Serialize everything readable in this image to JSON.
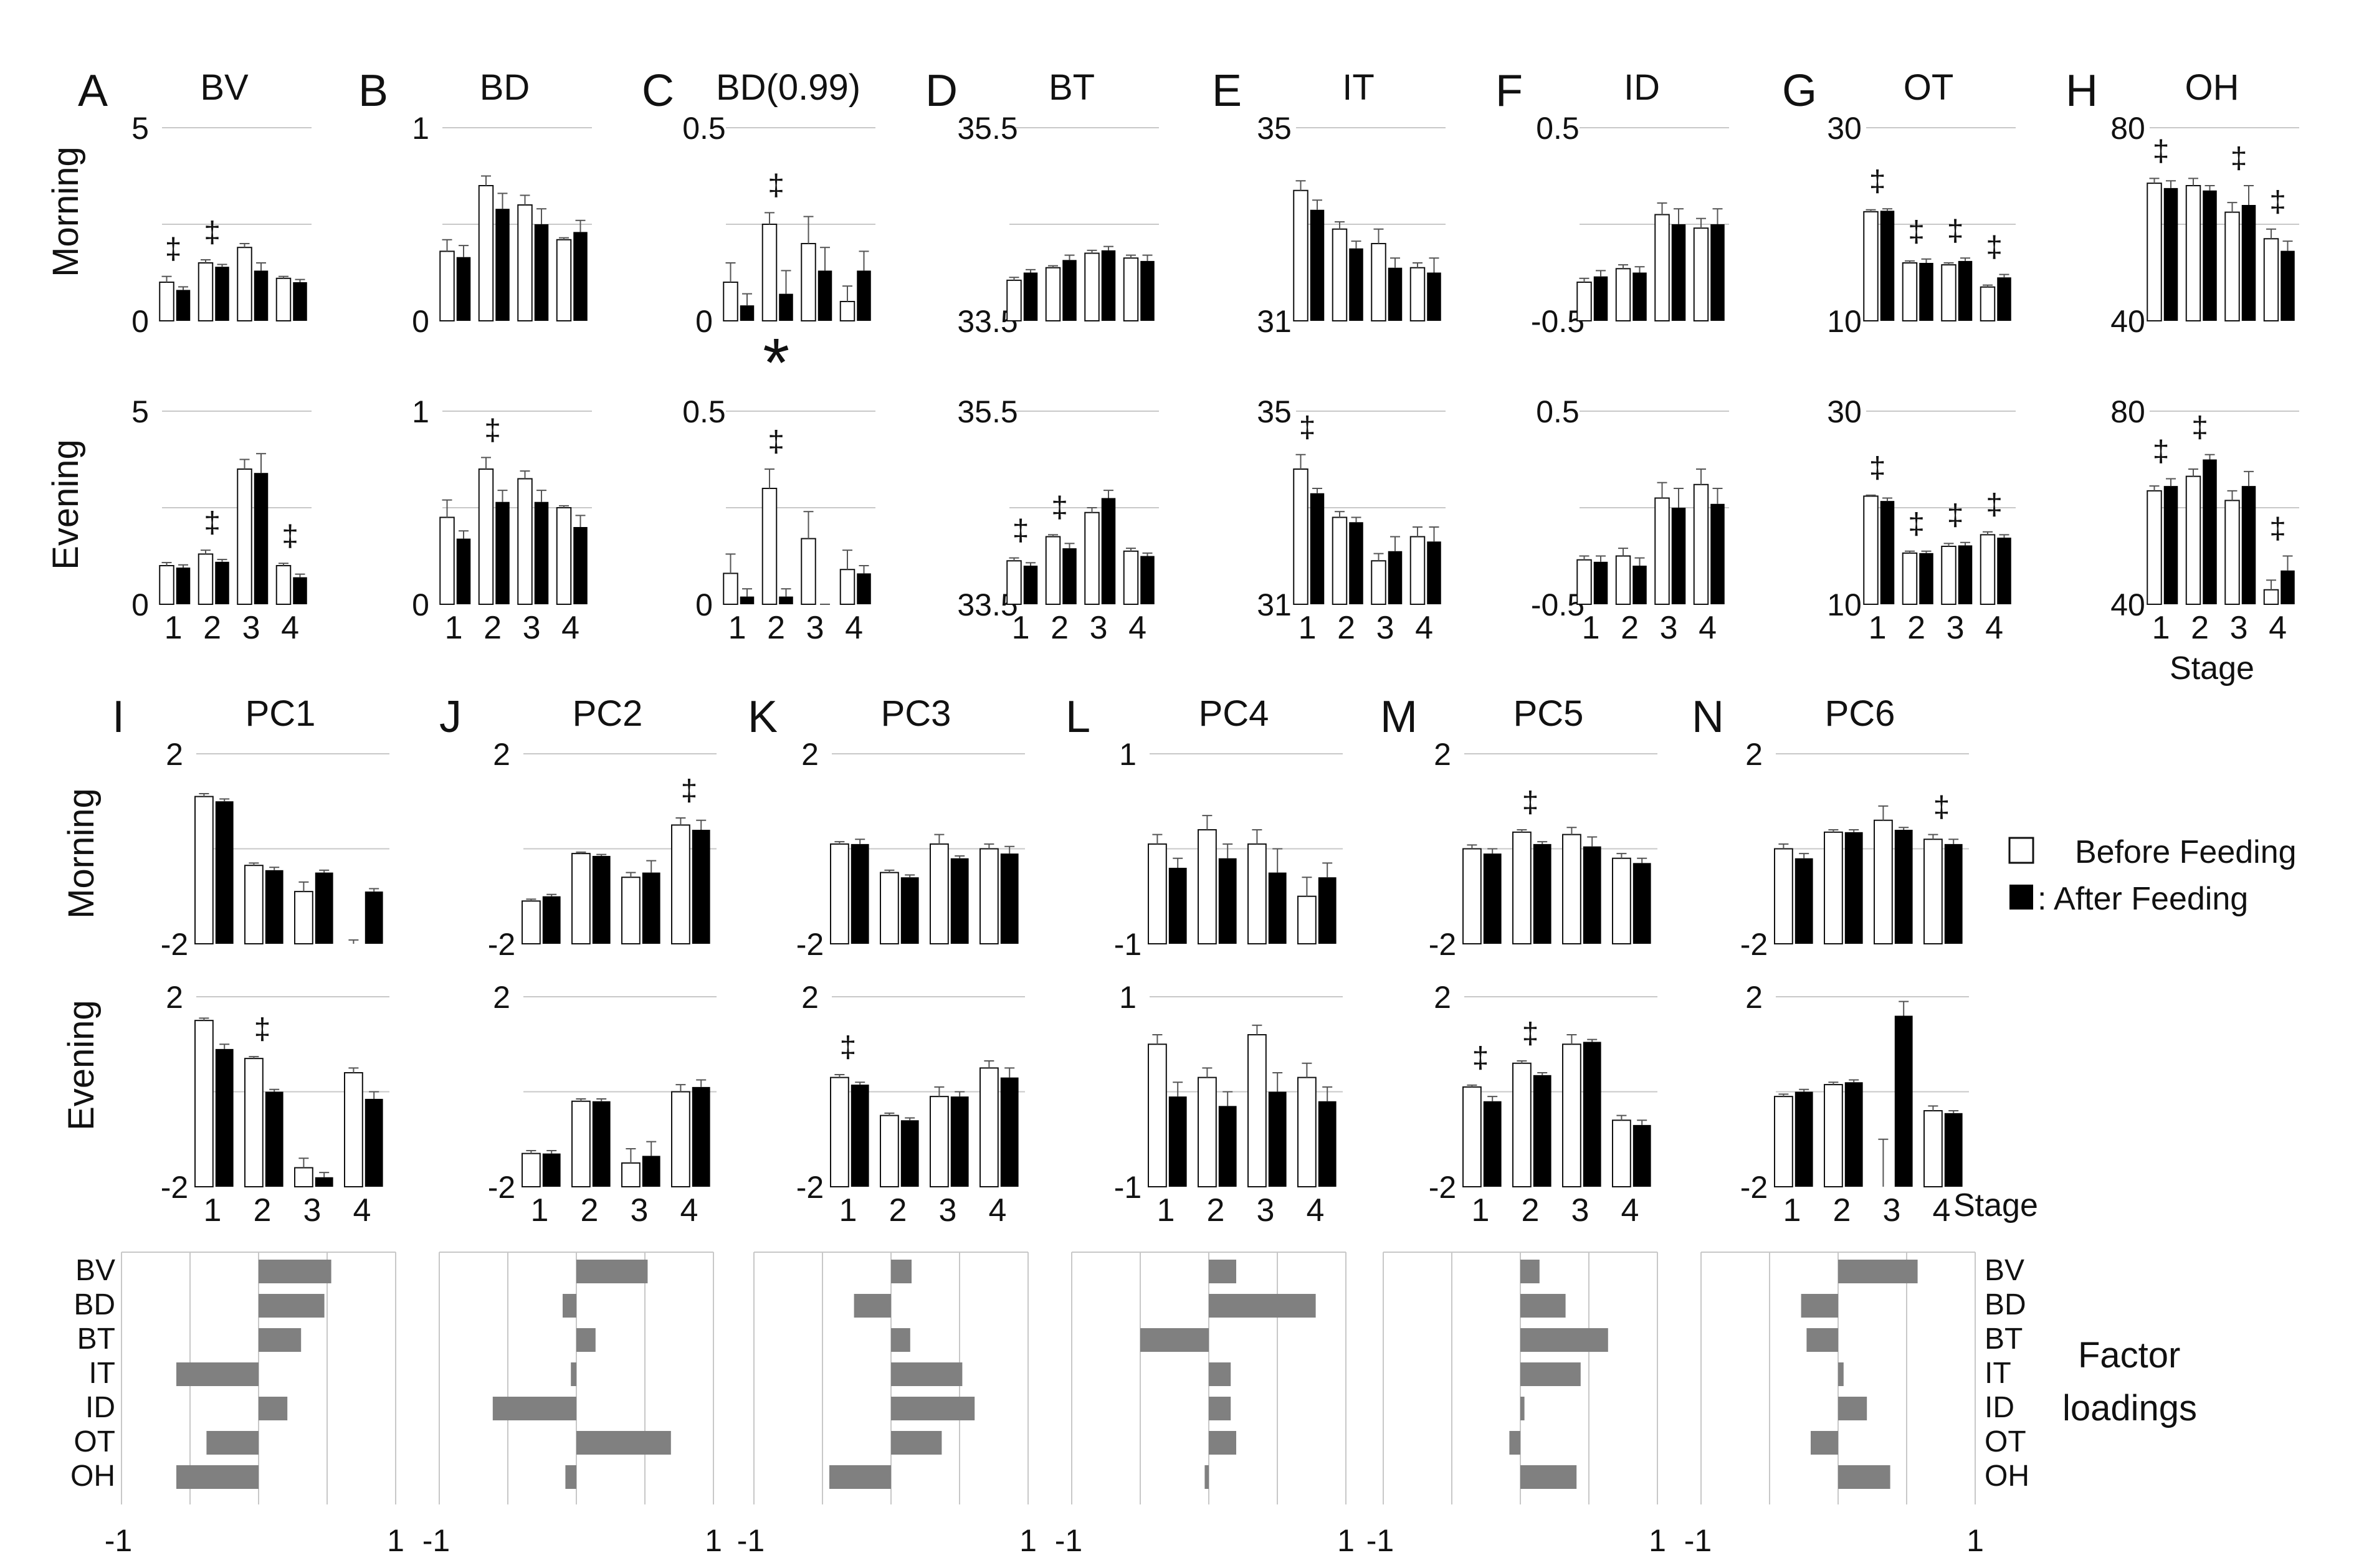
{
  "figure": {
    "side_labels": {
      "morning": "Morning",
      "evening": "Evening"
    },
    "stage_word": "Stage",
    "legend": {
      "before": "Before Feeding",
      "after": ": After  Feeding"
    },
    "factor_label_1": "Factor",
    "factor_label_2": "loadings",
    "sig_mark": "‡",
    "star_mark": "*",
    "colors": {
      "after": "#000000",
      "before": "#ffffff",
      "loading_bar": "#808080",
      "grid": "#c8c8c8",
      "error": "#555555"
    }
  },
  "chart_data": [
    {
      "type": "bar",
      "panel": "A",
      "title": "BV",
      "categories": [
        "1",
        "2",
        "3",
        "4"
      ],
      "morning": {
        "ylim": [
          0,
          5
        ],
        "ytick_labels": [
          "5",
          "0"
        ],
        "before": [
          1.0,
          1.5,
          1.9,
          1.1
        ],
        "after": [
          0.8,
          1.4,
          1.3,
          1.0
        ],
        "before_err": [
          0.15,
          0.08,
          0.1,
          0.05
        ],
        "after_err": [
          0.08,
          0.06,
          0.2,
          0.07
        ],
        "sig": [
          1,
          2
        ]
      },
      "evening": {
        "ylim": [
          0,
          5
        ],
        "ytick_labels": [
          "5",
          "0"
        ],
        "before": [
          1.0,
          1.3,
          3.5,
          1.0
        ],
        "after": [
          0.95,
          1.1,
          3.4,
          0.7
        ],
        "before_err": [
          0.08,
          0.1,
          0.25,
          0.06
        ],
        "after_err": [
          0.07,
          0.06,
          0.5,
          0.08
        ],
        "sig": [
          2,
          4
        ]
      }
    },
    {
      "type": "bar",
      "panel": "B",
      "title": "BD",
      "categories": [
        "1",
        "2",
        "3",
        "4"
      ],
      "morning": {
        "ylim": [
          0,
          1
        ],
        "ytick_labels": [
          "1",
          "0"
        ],
        "before": [
          0.36,
          0.7,
          0.6,
          0.42
        ],
        "after": [
          0.33,
          0.58,
          0.5,
          0.46
        ],
        "before_err": [
          0.06,
          0.05,
          0.05,
          0.01
        ],
        "after_err": [
          0.06,
          0.08,
          0.08,
          0.06
        ],
        "sig": []
      },
      "evening": {
        "ylim": [
          0,
          1
        ],
        "ytick_labels": [
          "1",
          "0"
        ],
        "before": [
          0.45,
          0.7,
          0.65,
          0.5
        ],
        "after": [
          0.34,
          0.53,
          0.53,
          0.4
        ],
        "before_err": [
          0.09,
          0.06,
          0.04,
          0.01
        ],
        "after_err": [
          0.04,
          0.06,
          0.06,
          0.06
        ],
        "sig": [
          2
        ]
      }
    },
    {
      "type": "bar",
      "panel": "C",
      "title": "BD(0.99)",
      "categories": [
        "1",
        "2",
        "3",
        "4"
      ],
      "morning": {
        "ylim": [
          0,
          0.5
        ],
        "ytick_labels": [
          "0.5",
          "0"
        ],
        "before": [
          0.1,
          0.25,
          0.2,
          0.05
        ],
        "after": [
          0.04,
          0.07,
          0.13,
          0.13
        ],
        "before_err": [
          0.05,
          0.03,
          0.07,
          0.04
        ],
        "after_err": [
          0.03,
          0.06,
          0.06,
          0.05
        ],
        "sig": [
          2
        ]
      },
      "evening": {
        "ylim": [
          0,
          0.5
        ],
        "ytick_labels": [
          "0.5",
          "0"
        ],
        "before": [
          0.08,
          0.3,
          0.17,
          0.09
        ],
        "after": [
          0.02,
          0.02,
          0.0,
          0.08
        ],
        "before_err": [
          0.05,
          0.05,
          0.07,
          0.05
        ],
        "after_err": [
          0.02,
          0.02,
          0.0,
          0.02
        ],
        "sig": [
          2
        ],
        "star": [
          2
        ]
      }
    },
    {
      "type": "bar",
      "panel": "D",
      "title": "BT",
      "categories": [
        "1",
        "2",
        "3",
        "4"
      ],
      "morning": {
        "ylim": [
          33.5,
          35.5
        ],
        "ytick_labels": [
          "35.5",
          "33.5"
        ],
        "before": [
          33.92,
          34.05,
          34.2,
          34.15
        ],
        "after": [
          34.0,
          34.13,
          34.23,
          34.12
        ],
        "before_err": [
          0.03,
          0.02,
          0.03,
          0.03
        ],
        "after_err": [
          0.03,
          0.05,
          0.04,
          0.06
        ],
        "sig": []
      },
      "evening": {
        "ylim": [
          33.5,
          35.5
        ],
        "ytick_labels": [
          "35.5",
          "33.5"
        ],
        "before": [
          33.95,
          34.2,
          34.45,
          34.05
        ],
        "after": [
          33.9,
          34.08,
          34.6,
          34.0
        ],
        "before_err": [
          0.03,
          0.02,
          0.05,
          0.03
        ],
        "after_err": [
          0.03,
          0.05,
          0.08,
          0.03
        ],
        "sig": [
          1,
          2
        ]
      }
    },
    {
      "type": "bar",
      "panel": "E",
      "title": "IT",
      "categories": [
        "1",
        "2",
        "3",
        "4"
      ],
      "morning": {
        "ylim": [
          31,
          35
        ],
        "ytick_labels": [
          "35",
          "31"
        ],
        "before": [
          33.7,
          32.9,
          32.6,
          32.1
        ],
        "after": [
          33.3,
          32.5,
          32.1,
          32.0
        ],
        "before_err": [
          0.2,
          0.15,
          0.3,
          0.1
        ],
        "after_err": [
          0.2,
          0.15,
          0.2,
          0.3
        ],
        "sig": []
      },
      "evening": {
        "ylim": [
          31,
          35
        ],
        "ytick_labels": [
          "35",
          "31"
        ],
        "before": [
          33.8,
          32.8,
          31.9,
          32.4
        ],
        "after": [
          33.3,
          32.7,
          32.1,
          32.3
        ],
        "before_err": [
          0.3,
          0.12,
          0.15,
          0.2
        ],
        "after_err": [
          0.1,
          0.1,
          0.3,
          0.3
        ],
        "sig": [
          1
        ]
      }
    },
    {
      "type": "bar",
      "panel": "F",
      "title": "ID",
      "categories": [
        "1",
        "2",
        "3",
        "4"
      ],
      "morning": {
        "ylim": [
          -0.5,
          0.5
        ],
        "ytick_labels": [
          "0.5",
          "-0.5"
        ],
        "before": [
          -0.3,
          -0.23,
          0.05,
          -0.02
        ],
        "after": [
          -0.27,
          -0.25,
          0.0,
          0.0
        ],
        "before_err": [
          0.02,
          0.02,
          0.06,
          0.05
        ],
        "after_err": [
          0.03,
          0.03,
          0.08,
          0.08
        ],
        "sig": []
      },
      "evening": {
        "ylim": [
          -0.5,
          0.5
        ],
        "ytick_labels": [
          "0.5",
          "-0.5"
        ],
        "before": [
          -0.27,
          -0.25,
          0.05,
          0.12
        ],
        "after": [
          -0.28,
          -0.3,
          0.0,
          0.02
        ],
        "before_err": [
          0.02,
          0.04,
          0.08,
          0.08
        ],
        "after_err": [
          0.03,
          0.04,
          0.1,
          0.08
        ],
        "sig": []
      }
    },
    {
      "type": "bar",
      "panel": "G",
      "title": "OT",
      "categories": [
        "1",
        "2",
        "3",
        "4"
      ],
      "morning": {
        "ylim": [
          10,
          30
        ],
        "ytick_labels": [
          "30",
          "10"
        ],
        "before": [
          21.3,
          16.0,
          15.8,
          13.5
        ],
        "after": [
          21.4,
          16.0,
          16.2,
          14.5
        ],
        "before_err": [
          0.2,
          0.2,
          0.2,
          0.2
        ],
        "after_err": [
          0.2,
          0.4,
          0.3,
          0.3
        ],
        "sig": [
          1,
          2,
          3,
          4
        ]
      },
      "evening": {
        "ylim": [
          10,
          30
        ],
        "ytick_labels": [
          "30",
          "10"
        ],
        "before": [
          21.2,
          15.3,
          16.0,
          17.2
        ],
        "after": [
          20.7,
          15.3,
          16.1,
          16.9
        ],
        "before_err": [
          0.1,
          0.2,
          0.3,
          0.3
        ],
        "after_err": [
          0.3,
          0.2,
          0.3,
          0.3
        ],
        "sig": [
          1,
          2,
          3,
          4
        ]
      }
    },
    {
      "type": "bar",
      "panel": "H",
      "title": "OH",
      "categories": [
        "1",
        "2",
        "3",
        "4"
      ],
      "morning": {
        "ylim": [
          40,
          80
        ],
        "ytick_labels": [
          "80",
          "40"
        ],
        "before": [
          68.5,
          68,
          62.5,
          57
        ],
        "after": [
          67.5,
          67,
          64,
          54.5
        ],
        "before_err": [
          1,
          1.5,
          2,
          2
        ],
        "after_err": [
          1.5,
          1,
          4,
          2
        ],
        "sig": [
          1,
          3,
          4
        ]
      },
      "evening": {
        "ylim": [
          40,
          80
        ],
        "ytick_labels": [
          "80",
          "40"
        ],
        "before": [
          63.5,
          66.5,
          61.5,
          43
        ],
        "after": [
          64.5,
          70,
          64.5,
          47
        ],
        "before_err": [
          1,
          1.5,
          2,
          2
        ],
        "after_err": [
          1.5,
          1,
          3,
          3
        ],
        "sig": [
          1,
          2,
          4
        ],
        "xlabel": "Stage"
      }
    },
    {
      "type": "bar",
      "panel": "I",
      "title": "PC1",
      "categories": [
        "1",
        "2",
        "3",
        "4"
      ],
      "morning": {
        "ylim": [
          -2,
          2
        ],
        "ytick_labels": [
          "2",
          "-2"
        ],
        "before": [
          1.1,
          -0.35,
          -0.9,
          -2.0
        ],
        "after": [
          1.0,
          -0.45,
          -0.5,
          -0.9
        ],
        "before_err": [
          0.06,
          0.05,
          0.2,
          0.08
        ],
        "after_err": [
          0.05,
          0.06,
          0.05,
          0.06
        ],
        "sig": []
      },
      "evening": {
        "ylim": [
          -2,
          2
        ],
        "ytick_labels": [
          "2",
          "-2"
        ],
        "before": [
          1.5,
          0.7,
          -1.6,
          0.4
        ],
        "after": [
          0.9,
          0.0,
          -1.8,
          -0.15
        ],
        "before_err": [
          0.05,
          0.04,
          0.2,
          0.1
        ],
        "after_err": [
          0.1,
          0.05,
          0.1,
          0.15
        ],
        "sig": [
          2
        ]
      }
    },
    {
      "type": "bar",
      "panel": "J",
      "title": "PC2",
      "categories": [
        "1",
        "2",
        "3",
        "4"
      ],
      "morning": {
        "ylim": [
          -2,
          2
        ],
        "ytick_labels": [
          "2",
          "-2"
        ],
        "before": [
          -1.1,
          -0.1,
          -0.6,
          0.5
        ],
        "after": [
          -1.0,
          -0.15,
          -0.5,
          0.4
        ],
        "before_err": [
          0.04,
          0.03,
          0.1,
          0.15
        ],
        "after_err": [
          0.04,
          0.03,
          0.25,
          0.2
        ],
        "sig": [
          4
        ]
      },
      "evening": {
        "ylim": [
          -2,
          2
        ],
        "ytick_labels": [
          "2",
          "-2"
        ],
        "before": [
          -1.3,
          -0.2,
          -1.5,
          0.0
        ],
        "after": [
          -1.3,
          -0.2,
          -1.35,
          0.1
        ],
        "before_err": [
          0.06,
          0.05,
          0.3,
          0.15
        ],
        "after_err": [
          0.06,
          0.05,
          0.3,
          0.15
        ],
        "sig": []
      }
    },
    {
      "type": "bar",
      "panel": "K",
      "title": "PC3",
      "categories": [
        "1",
        "2",
        "3",
        "4"
      ],
      "morning": {
        "ylim": [
          -2,
          2
        ],
        "ytick_labels": [
          "2",
          "-2"
        ],
        "before": [
          0.1,
          -0.5,
          0.1,
          0.0
        ],
        "after": [
          0.1,
          -0.6,
          -0.2,
          -0.1
        ],
        "before_err": [
          0.05,
          0.05,
          0.2,
          0.1
        ],
        "after_err": [
          0.1,
          0.05,
          0.05,
          0.15
        ],
        "sig": []
      },
      "evening": {
        "ylim": [
          -2,
          2
        ],
        "ytick_labels": [
          "2",
          "-2"
        ],
        "before": [
          0.3,
          -0.5,
          -0.1,
          0.5
        ],
        "after": [
          0.15,
          -0.6,
          -0.1,
          0.3
        ],
        "before_err": [
          0.06,
          0.05,
          0.2,
          0.15
        ],
        "after_err": [
          0.05,
          0.05,
          0.1,
          0.2
        ],
        "sig": [
          1
        ]
      }
    },
    {
      "type": "bar",
      "panel": "L",
      "title": "PC4",
      "categories": [
        "1",
        "2",
        "3",
        "4"
      ],
      "morning": {
        "ylim": [
          -1,
          1
        ],
        "ytick_labels": [
          "1",
          "-1"
        ],
        "before": [
          0.05,
          0.2,
          0.05,
          -0.5
        ],
        "after": [
          -0.2,
          -0.1,
          -0.25,
          -0.3
        ],
        "before_err": [
          0.1,
          0.15,
          0.15,
          0.2
        ],
        "after_err": [
          0.1,
          0.15,
          0.25,
          0.15
        ],
        "sig": []
      },
      "evening": {
        "ylim": [
          -1,
          1
        ],
        "ytick_labels": [
          "1",
          "-1"
        ],
        "before": [
          0.5,
          0.15,
          0.6,
          0.15
        ],
        "after": [
          -0.05,
          -0.15,
          0.0,
          -0.1
        ],
        "before_err": [
          0.1,
          0.1,
          0.1,
          0.15
        ],
        "after_err": [
          0.15,
          0.15,
          0.2,
          0.15
        ],
        "sig": []
      }
    },
    {
      "type": "bar",
      "panel": "M",
      "title": "PC5",
      "categories": [
        "1",
        "2",
        "3",
        "4"
      ],
      "morning": {
        "ylim": [
          -2,
          2
        ],
        "ytick_labels": [
          "2",
          "-2"
        ],
        "before": [
          0.0,
          0.35,
          0.3,
          -0.2
        ],
        "after": [
          -0.1,
          0.1,
          0.05,
          -0.3
        ],
        "before_err": [
          0.08,
          0.05,
          0.15,
          0.1
        ],
        "after_err": [
          0.1,
          0.05,
          0.2,
          0.1
        ],
        "sig": [
          2
        ]
      },
      "evening": {
        "ylim": [
          -2,
          2
        ],
        "ytick_labels": [
          "2",
          "-2"
        ],
        "before": [
          0.1,
          0.6,
          1.0,
          -0.6
        ],
        "after": [
          -0.2,
          0.35,
          1.05,
          -0.7
        ],
        "before_err": [
          0.04,
          0.05,
          0.2,
          0.1
        ],
        "after_err": [
          0.1,
          0.05,
          0.05,
          0.1
        ],
        "sig": [
          1,
          2
        ]
      }
    },
    {
      "type": "bar",
      "panel": "N",
      "title": "PC6",
      "categories": [
        "1",
        "2",
        "3",
        "4"
      ],
      "morning": {
        "ylim": [
          -2,
          2
        ],
        "ytick_labels": [
          "2",
          "-2"
        ],
        "before": [
          0.0,
          0.35,
          0.6,
          0.2
        ],
        "after": [
          -0.2,
          0.35,
          0.4,
          0.1
        ],
        "before_err": [
          0.1,
          0.05,
          0.3,
          0.1
        ],
        "after_err": [
          0.1,
          0.05,
          0.05,
          0.1
        ],
        "sig": [
          4
        ]
      },
      "evening": {
        "ylim": [
          -2,
          2
        ],
        "ytick_labels": [
          "2",
          "-2"
        ],
        "before": [
          -0.1,
          0.15,
          -2.0,
          -0.4
        ],
        "after": [
          0.0,
          0.2,
          1.6,
          -0.45
        ],
        "before_err": [
          0.05,
          0.05,
          1.0,
          0.1
        ],
        "after_err": [
          0.05,
          0.05,
          0.3,
          0.05
        ],
        "sig": []
      }
    }
  ],
  "loadings": {
    "variables": [
      "BV",
      "BD",
      "BT",
      "IT",
      "ID",
      "OT",
      "OH"
    ],
    "range": [
      -1,
      1
    ],
    "range_labels": [
      "-1",
      "1"
    ],
    "panels": [
      {
        "panel": "PC1",
        "values": [
          0.53,
          0.48,
          0.31,
          -0.6,
          0.21,
          -0.38,
          -0.6
        ]
      },
      {
        "panel": "PC2",
        "values": [
          0.52,
          -0.1,
          0.14,
          -0.04,
          -0.61,
          0.69,
          -0.08
        ]
      },
      {
        "panel": "PC3",
        "values": [
          0.15,
          -0.27,
          0.14,
          0.52,
          0.61,
          0.37,
          -0.45
        ]
      },
      {
        "panel": "PC4",
        "values": [
          0.2,
          0.78,
          -0.5,
          0.16,
          0.16,
          0.2,
          -0.03
        ]
      },
      {
        "panel": "PC5",
        "values": [
          0.14,
          0.33,
          0.64,
          0.44,
          0.03,
          -0.08,
          0.41
        ]
      },
      {
        "panel": "PC6",
        "values": [
          0.58,
          -0.27,
          -0.23,
          0.04,
          0.21,
          -0.2,
          0.38
        ]
      }
    ]
  }
}
